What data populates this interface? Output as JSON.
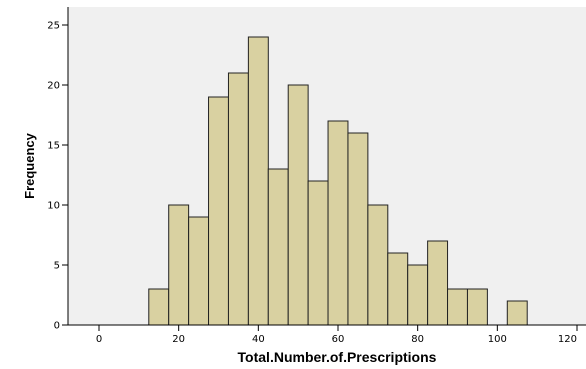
{
  "chart_data": {
    "type": "bar",
    "title": "",
    "xlabel": "Total.Number.of.Prescriptions",
    "ylabel": "Frequency",
    "xlim": [
      -10,
      120
    ],
    "ylim": [
      0,
      26
    ],
    "x_ticks": [
      0,
      20,
      40,
      60,
      80,
      100,
      120
    ],
    "y_ticks": [
      0,
      5,
      10,
      15,
      20,
      25
    ],
    "bin_width": 5,
    "bins": [
      {
        "start": 12.5,
        "end": 17.5,
        "value": 3
      },
      {
        "start": 17.5,
        "end": 22.5,
        "value": 10
      },
      {
        "start": 22.5,
        "end": 27.5,
        "value": 9
      },
      {
        "start": 27.5,
        "end": 32.5,
        "value": 19
      },
      {
        "start": 32.5,
        "end": 37.5,
        "value": 21
      },
      {
        "start": 37.5,
        "end": 42.5,
        "value": 24
      },
      {
        "start": 42.5,
        "end": 47.5,
        "value": 13
      },
      {
        "start": 47.5,
        "end": 52.5,
        "value": 20
      },
      {
        "start": 52.5,
        "end": 57.5,
        "value": 12
      },
      {
        "start": 57.5,
        "end": 62.5,
        "value": 17
      },
      {
        "start": 62.5,
        "end": 67.5,
        "value": 16
      },
      {
        "start": 67.5,
        "end": 72.5,
        "value": 10
      },
      {
        "start": 72.5,
        "end": 77.5,
        "value": 6
      },
      {
        "start": 77.5,
        "end": 82.5,
        "value": 5
      },
      {
        "start": 82.5,
        "end": 87.5,
        "value": 7
      },
      {
        "start": 87.5,
        "end": 92.5,
        "value": 3
      },
      {
        "start": 92.5,
        "end": 97.5,
        "value": 3
      },
      {
        "start": 102.5,
        "end": 107.5,
        "value": 2
      }
    ],
    "grid": false,
    "legend": "none"
  },
  "colors": {
    "plot_background": "#f0f0f0",
    "bar_fill": "#d9d1a1",
    "bar_stroke": "#222222",
    "axis": "#000000"
  }
}
